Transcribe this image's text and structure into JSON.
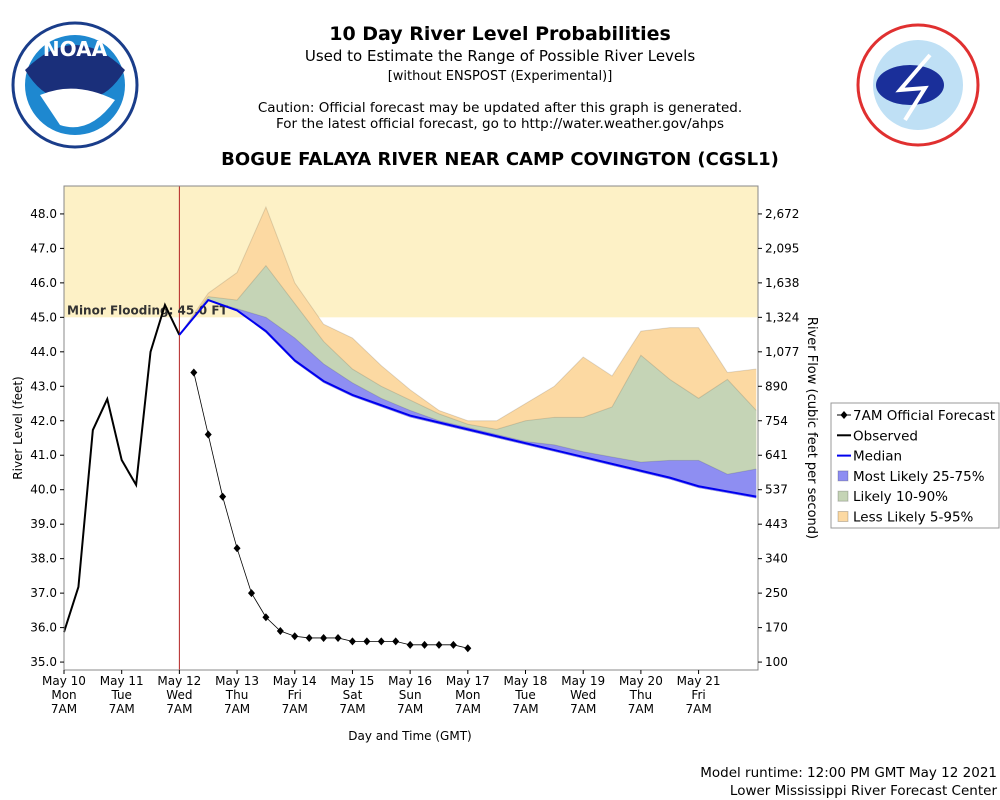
{
  "header": {
    "title": "10 Day River Level Probabilities",
    "subtitle": "Used to Estimate the Range of Possible River Levels",
    "note": "[without ENSPOST (Experimental)]",
    "caution": "Caution: Official forecast may be updated after this graph is generated.",
    "link": "For the latest official forecast, go to http://water.weather.gov/ahps",
    "station": "BOGUE FALAYA RIVER NEAR CAMP COVINGTON (CGSL1)",
    "logo_text": "NOAA"
  },
  "chart_data": {
    "type": "line",
    "x_label": "Day and Time (GMT)",
    "y_label": "River Level (feet)",
    "y2_label": "River Flow (cubic feet per second)",
    "xlim": [
      0,
      12.03
    ],
    "ylim": [
      34.77,
      48.81
    ],
    "xticks": [
      {
        "value": 0,
        "label": "May 10"
      },
      {
        "value": 1,
        "label": "May 11"
      },
      {
        "value": 2,
        "label": "May 12"
      },
      {
        "value": 3,
        "label": "May 13"
      },
      {
        "value": 4,
        "label": "May 14"
      },
      {
        "value": 5,
        "label": "May 15"
      },
      {
        "value": 6,
        "label": "May 16"
      },
      {
        "value": 7,
        "label": "May 17"
      },
      {
        "value": 8,
        "label": "May 18"
      },
      {
        "value": 9,
        "label": "May 19"
      },
      {
        "value": 10,
        "label": "May 20"
      },
      {
        "value": 11,
        "label": "May 21"
      }
    ],
    "xtick_days": [
      "Mon",
      "Tue",
      "Wed",
      "Thu",
      "Fri",
      "Sat",
      "Sun",
      "Mon",
      "Tue",
      "Wed",
      "Thu",
      "Fri"
    ],
    "xtick_times": [
      "7AM",
      "7AM",
      "7AM",
      "7AM",
      "7AM",
      "7AM",
      "7AM",
      "7AM",
      "7AM",
      "7AM",
      "7AM",
      "7AM"
    ],
    "yticks": [
      {
        "value": 35,
        "label": "35.0"
      },
      {
        "value": 36,
        "label": "36.0"
      },
      {
        "value": 37,
        "label": "37.0"
      },
      {
        "value": 38,
        "label": "38.0"
      },
      {
        "value": 39,
        "label": "39.0"
      },
      {
        "value": 40,
        "label": "40.0"
      },
      {
        "value": 41,
        "label": "41.0"
      },
      {
        "value": 42,
        "label": "42.0"
      },
      {
        "value": 43,
        "label": "43.0"
      },
      {
        "value": 44,
        "label": "44.0"
      },
      {
        "value": 45,
        "label": "45.0"
      },
      {
        "value": 46,
        "label": "46.0"
      },
      {
        "value": 47,
        "label": "47.0"
      },
      {
        "value": 48,
        "label": "48.0"
      }
    ],
    "y2ticks": [
      100,
      170,
      250,
      340,
      443,
      537,
      641,
      754,
      890,
      {
        "value": 1077,
        "label": "1,077"
      },
      {
        "value": 1324,
        "label": "1,324"
      },
      {
        "value": 1638,
        "label": "1,638"
      },
      {
        "value": 2095,
        "label": "2,095"
      },
      {
        "value": 2672,
        "label": "2,672"
      }
    ],
    "flood": {
      "value": 45,
      "label": "Minor Flooding: 45.0 FT",
      "color": "#fdf1c6"
    },
    "issue_x": 2,
    "issue_color": "#b22222",
    "bands": [
      {
        "name": "Less Likely 5-95%",
        "color": "#fcd9a2",
        "x": [
          2,
          2.5,
          3,
          3.5,
          4,
          4.5,
          5,
          5.5,
          6,
          6.5,
          7,
          7.5,
          8,
          8.5,
          9,
          9.5,
          10,
          10.5,
          11,
          11.5,
          12
        ],
        "lower": [
          44.49,
          45.5,
          45.2,
          44.55,
          43.7,
          43.1,
          42.7,
          42.4,
          42.1,
          41.9,
          41.7,
          41.5,
          41.3,
          41.1,
          40.9,
          40.7,
          40.5,
          40.3,
          40.05,
          39.9,
          39.75
        ],
        "upper": [
          44.49,
          45.7,
          46.3,
          48.2,
          46.0,
          44.8,
          44.4,
          43.6,
          42.9,
          42.3,
          42.0,
          42.0,
          42.5,
          43.0,
          43.85,
          43.3,
          44.6,
          44.7,
          44.7,
          43.4,
          43.5
        ]
      },
      {
        "name": "Likely 10-90%",
        "color": "#c5d4b6",
        "x": [
          2,
          2.5,
          3,
          3.5,
          4,
          4.5,
          5,
          5.5,
          6,
          6.5,
          7,
          7.5,
          8,
          8.5,
          9,
          9.5,
          10,
          10.5,
          11,
          11.5,
          12
        ],
        "lower": [
          44.49,
          45.5,
          45.2,
          44.55,
          43.7,
          43.1,
          42.7,
          42.4,
          42.1,
          41.9,
          41.7,
          41.5,
          41.3,
          41.1,
          40.9,
          40.7,
          40.5,
          40.3,
          40.05,
          39.9,
          39.75
        ],
        "upper": [
          44.49,
          45.6,
          45.5,
          46.5,
          45.4,
          44.3,
          43.5,
          43.0,
          42.6,
          42.2,
          41.9,
          41.75,
          42.0,
          42.1,
          42.1,
          42.4,
          43.9,
          43.2,
          42.65,
          43.2,
          42.3
        ]
      },
      {
        "name": "Most Likely 25-75%",
        "color": "#8e8ef2",
        "x": [
          2,
          2.5,
          3,
          3.5,
          4,
          4.5,
          5,
          5.5,
          6,
          6.5,
          7,
          7.5,
          8,
          8.5,
          9,
          9.5,
          10,
          10.5,
          11,
          11.5,
          12
        ],
        "lower": [
          44.49,
          45.5,
          45.2,
          44.55,
          43.7,
          43.1,
          42.7,
          42.4,
          42.1,
          41.9,
          41.7,
          41.5,
          41.3,
          41.1,
          40.9,
          40.7,
          40.5,
          40.3,
          40.05,
          39.9,
          39.75
        ],
        "upper": [
          44.49,
          45.5,
          45.25,
          45.0,
          44.4,
          43.65,
          43.1,
          42.65,
          42.3,
          42.0,
          41.8,
          41.6,
          41.4,
          41.3,
          41.1,
          40.95,
          40.8,
          40.85,
          40.85,
          40.45,
          40.6
        ]
      }
    ],
    "series": [
      {
        "name": "7AM Official Forecast",
        "color": "#000000",
        "marker": "diamond",
        "x": [
          2.25,
          2.5,
          2.75,
          3,
          3.25,
          3.5,
          3.75,
          4,
          4.25,
          4.5,
          4.75,
          5,
          5.25,
          5.5,
          5.75,
          6,
          6.25,
          6.5,
          6.75,
          7
        ],
        "values": [
          43.4,
          41.6,
          39.8,
          38.3,
          37.0,
          36.3,
          35.9,
          35.75,
          35.7,
          35.7,
          35.7,
          35.6,
          35.6,
          35.6,
          35.6,
          35.5,
          35.5,
          35.5,
          35.5,
          35.4
        ]
      },
      {
        "name": "Observed",
        "color": "#000000",
        "x": [
          0,
          0.25,
          0.5,
          0.75,
          1,
          1.25,
          1.5,
          1.75,
          2
        ],
        "values": [
          35.87,
          37.18,
          41.73,
          42.63,
          40.86,
          40.14,
          44.0,
          45.36,
          44.49
        ]
      },
      {
        "name": "Median",
        "color": "#0000ee",
        "x": [
          2,
          2.5,
          3,
          3.5,
          4,
          4.5,
          5,
          5.5,
          6,
          6.5,
          7,
          7.5,
          8,
          8.5,
          9,
          9.5,
          10,
          10.5,
          11,
          11.5,
          12
        ],
        "values": [
          44.49,
          45.5,
          45.2,
          44.6,
          43.75,
          43.15,
          42.75,
          42.45,
          42.15,
          41.95,
          41.75,
          41.55,
          41.35,
          41.15,
          40.95,
          40.75,
          40.55,
          40.35,
          40.1,
          39.95,
          39.8
        ]
      }
    ],
    "legend_order": [
      "7AM Official Forecast",
      "Observed",
      "Median",
      "Most Likely 25-75%",
      "Likely 10-90%",
      "Less Likely 5-95%"
    ]
  },
  "footer": {
    "runtime": "Model runtime: 12:00 PM GMT May 12 2021",
    "center": "Lower Mississippi River Forecast Center"
  }
}
